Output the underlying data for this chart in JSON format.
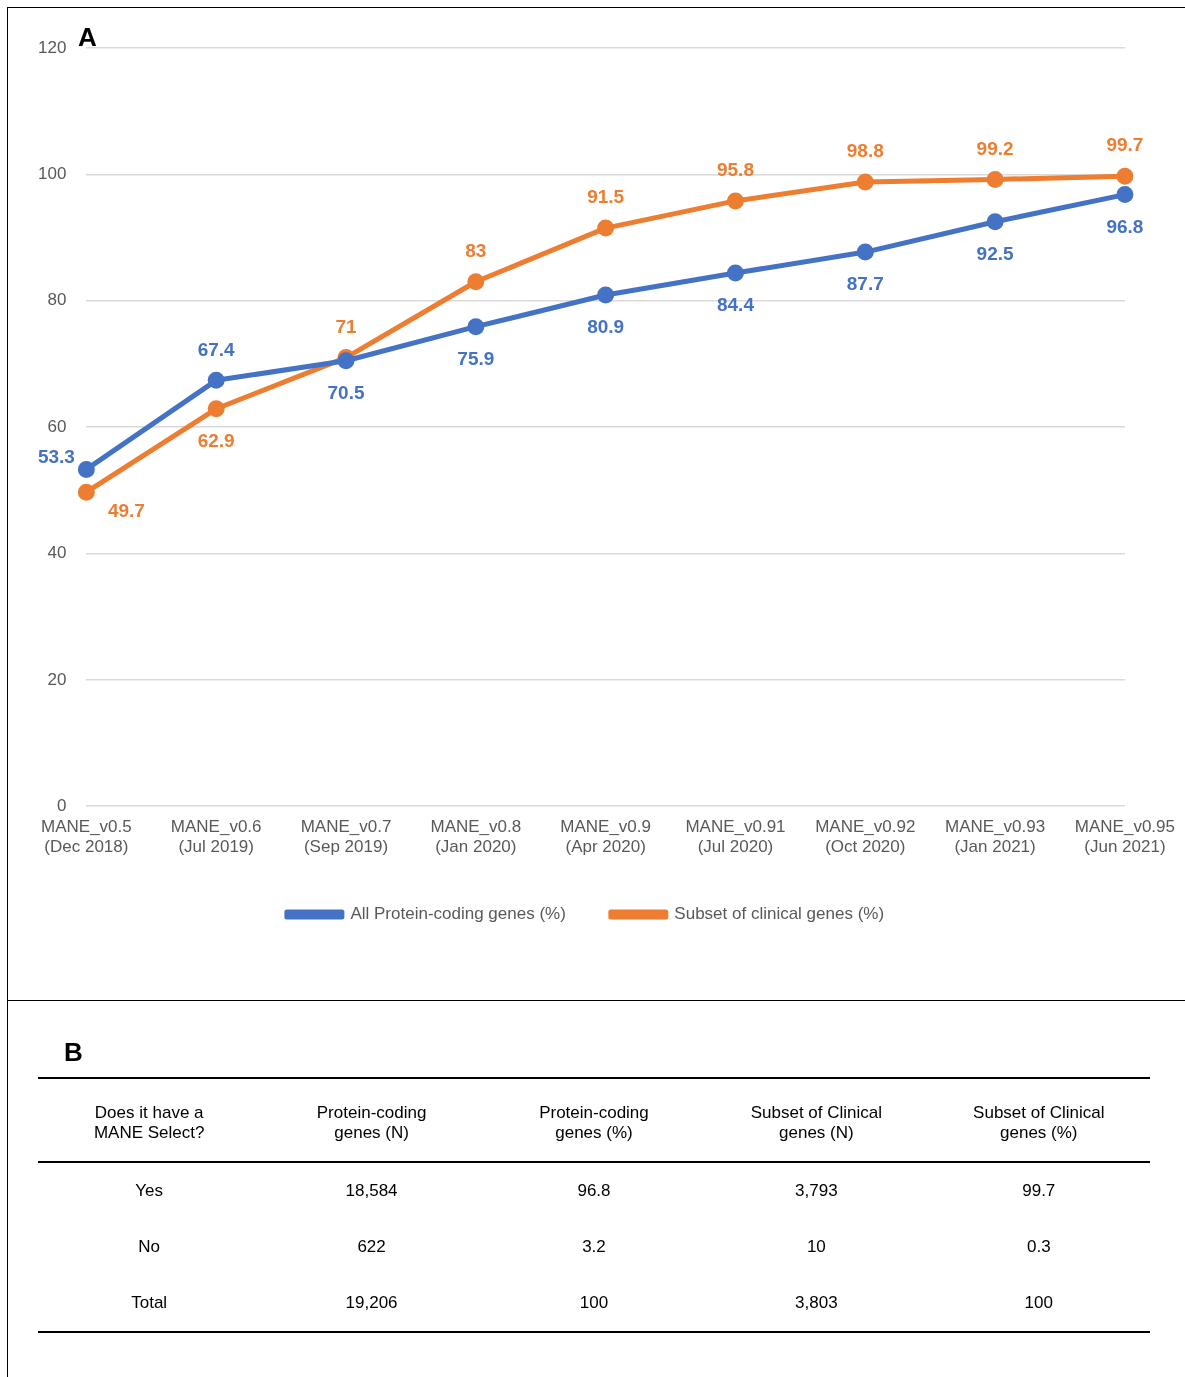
{
  "chart_data": [
    {
      "type": "line",
      "title": "A",
      "categories": [
        "MANE_v0.5 (Dec 2018)",
        "MANE_v0.6 (Jul 2019)",
        "MANE_v0.7 (Sep 2019)",
        "MANE_v0.8 (Jan 2020)",
        "MANE_v0.9 (Apr 2020)",
        "MANE_v0.91 (Jul 2020)",
        "MANE_v0.92 (Oct 2020)",
        "MANE_v0.93 (Jan 2021)",
        "MANE_v0.95 (Jun 2021)"
      ],
      "series": [
        {
          "name": "All Protein-coding genes (%)",
          "color": "#4472c4",
          "values": [
            53.3,
            67.4,
            70.5,
            75.9,
            80.9,
            84.4,
            87.7,
            92.5,
            96.8
          ]
        },
        {
          "name": "Subset of clinical genes (%)",
          "color": "#ed7d31",
          "values": [
            49.7,
            62.9,
            71,
            83,
            91.5,
            95.8,
            98.8,
            99.2,
            99.7
          ]
        }
      ],
      "ylim": [
        0,
        120
      ],
      "yticks": [
        0,
        20,
        40,
        60,
        80,
        100,
        120
      ],
      "grid": "y",
      "legend": "bottom",
      "marker": "circle",
      "line_style": "solid",
      "data_labels": true
    },
    {
      "type": "other",
      "title": "B",
      "ylabel": "Does it have a MANE Select?",
      "categories": [
        "Yes",
        "No",
        "Total"
      ],
      "series": [
        {
          "name": "Protein-coding genes (N)",
          "values": [
            18584,
            622,
            19206
          ],
          "value_labels": [
            "18,584",
            "622",
            "19,206"
          ]
        },
        {
          "name": "Protein-coding genes (%)",
          "values": [
            96.8,
            3.2,
            100
          ],
          "value_labels": [
            "96.8",
            "3.2",
            "100"
          ]
        },
        {
          "name": "Subset of Clinical genes (N)",
          "values": [
            3793,
            10,
            3803
          ],
          "value_labels": [
            "3,793",
            "10",
            "3,803"
          ]
        },
        {
          "name": "Subset of Clinical genes (%)",
          "values": [
            99.7,
            0.3,
            100
          ],
          "value_labels": [
            "99.7",
            "0.3",
            "100"
          ]
        }
      ]
    }
  ]
}
